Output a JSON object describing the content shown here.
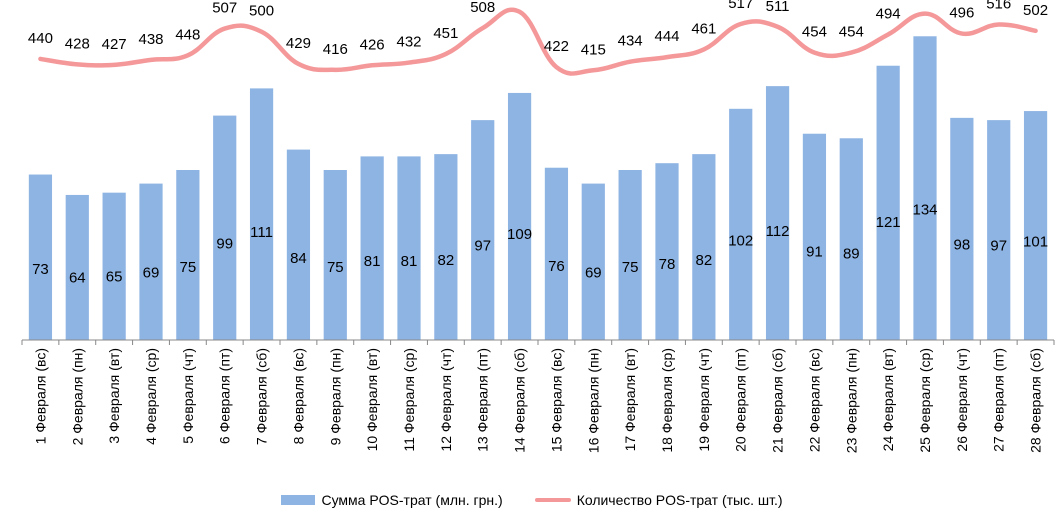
{
  "chart_data": {
    "type": "bar",
    "categories": [
      "1 Февраля (вс)",
      "2 Февраля (пн)",
      "3 Февраля (вт)",
      "4 Февраля (ср)",
      "5 Февраля (чт)",
      "6 Февраля (пт)",
      "7 Февраля (сб)",
      "8 Февраля (вс)",
      "9 Февраля (пн)",
      "10 Февраля (вт)",
      "11 Февраля (ср)",
      "12 Февраля (чт)",
      "13 Февраля (пт)",
      "14 Февраля (сб)",
      "15 Февраля (вс)",
      "16 Февраля (пн)",
      "17 Февраля (вт)",
      "18 Февраля (ср)",
      "19 Февраля (чт)",
      "20 Февраля (пт)",
      "21 Февраля (сб)",
      "22 Февраля (вс)",
      "23 Февраля (пн)",
      "24 Февраля (вт)",
      "25 Февраля (ср)",
      "26 Февраля (чт)",
      "27 Февраля (пт)",
      "28 Февраля (сб)"
    ],
    "series": [
      {
        "name": "Сумма POS-трат (млн. грн.)",
        "type": "bar",
        "color": "#8EB4E3",
        "values": [
          73,
          64,
          65,
          69,
          75,
          99,
          111,
          84,
          75,
          81,
          81,
          82,
          97,
          109,
          76,
          69,
          75,
          78,
          82,
          102,
          112,
          91,
          89,
          121,
          134,
          98,
          97,
          101
        ]
      },
      {
        "name": "Количество POS-трат (тыс. шт.)",
        "type": "line",
        "color": "#F4989A",
        "values": [
          440,
          428,
          427,
          438,
          448,
          507,
          500,
          429,
          416,
          426,
          432,
          451,
          508,
          544,
          422,
          415,
          434,
          444,
          461,
          517,
          511,
          454,
          454,
          494,
          540,
          496,
          516,
          502
        ]
      }
    ],
    "bar_axis_range": [
      0,
      150
    ],
    "line_axis_range": [
      -180,
      570
    ],
    "legend_position": "bottom",
    "grid": false
  }
}
